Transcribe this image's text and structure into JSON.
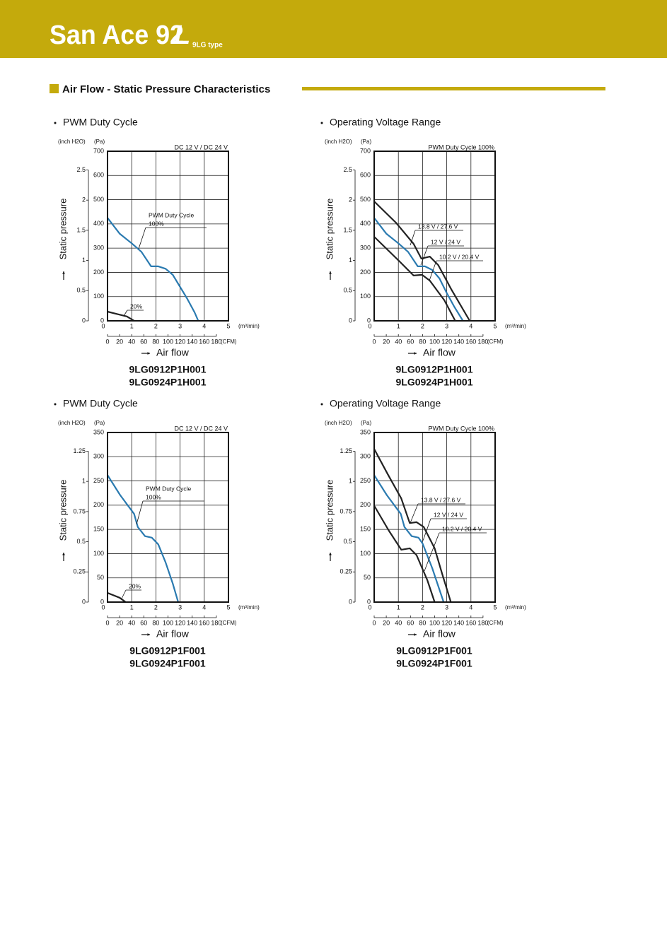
{
  "header": {
    "brand": "San Ace 92",
    "suffix": "L",
    "type": "9LG type"
  },
  "section_title": "Air Flow - Static Pressure Characteristics",
  "chart_data": [
    {
      "type": "line",
      "title": "PWM Duty Cycle",
      "condition": "DC 12 V / DC 24 V",
      "annotation": "PWM Duty Cycle",
      "y_label": "Static pressure",
      "x_label": "Air flow",
      "y_unit": "(Pa)",
      "y2_unit": "(inch H2O)",
      "x_unit": "(m³/min)",
      "x2_unit": "(CFM)",
      "models": [
        "9LG0912P1H001",
        "9LG0924P1H001"
      ],
      "xlim": [
        0,
        5
      ],
      "xticks": [
        0,
        1,
        2,
        3,
        4,
        5
      ],
      "ylim": [
        0,
        700
      ],
      "yticks": [
        0,
        100,
        200,
        300,
        400,
        500,
        600,
        700
      ],
      "y2lim": [
        0,
        2.81
      ],
      "y2ticks": [
        0,
        0.5,
        1.0,
        1.5,
        2.0,
        2.5
      ],
      "x2lim": [
        0,
        200
      ],
      "x2ticks": [
        0,
        20,
        40,
        60,
        80,
        100,
        120,
        140,
        160,
        180
      ],
      "grid": true,
      "series": [
        {
          "name": "100%",
          "color": "#2a7ab0",
          "x": [
            0,
            0.5,
            1,
            1.4,
            1.8,
            2.1,
            2.4,
            2.7,
            3.0,
            3.3,
            3.6,
            3.75
          ],
          "values": [
            425,
            360,
            320,
            285,
            225,
            225,
            215,
            190,
            140,
            90,
            35,
            0
          ]
        },
        {
          "name": "20%",
          "color": "#222222",
          "x": [
            0,
            0.4,
            0.8,
            1.1
          ],
          "values": [
            38,
            28,
            18,
            0
          ]
        }
      ]
    },
    {
      "type": "line",
      "title": "Operating Voltage Range",
      "condition": "PWM Duty Cycle 100%",
      "y_label": "Static pressure",
      "x_label": "Air flow",
      "y_unit": "(Pa)",
      "y2_unit": "(inch H2O)",
      "x_unit": "(m³/min)",
      "x2_unit": "(CFM)",
      "models": [
        "9LG0912P1H001",
        "9LG0924P1H001"
      ],
      "xlim": [
        0,
        5
      ],
      "xticks": [
        0,
        1,
        2,
        3,
        4,
        5
      ],
      "ylim": [
        0,
        700
      ],
      "yticks": [
        0,
        100,
        200,
        300,
        400,
        500,
        600,
        700
      ],
      "y2lim": [
        0,
        2.81
      ],
      "y2ticks": [
        0,
        0.5,
        1.0,
        1.5,
        2.0,
        2.5
      ],
      "x2lim": [
        0,
        200
      ],
      "x2ticks": [
        0,
        20,
        40,
        60,
        80,
        100,
        120,
        140,
        160,
        180
      ],
      "grid": true,
      "series": [
        {
          "name": "13.8 V / 27.6 V",
          "color": "#222222",
          "x": [
            0,
            0.9,
            1.63,
            1.95,
            2.3,
            2.65,
            3.2,
            3.95
          ],
          "values": [
            493,
            405,
            318,
            257,
            265,
            230,
            128,
            0
          ]
        },
        {
          "name": "12 V / 24 V",
          "color": "#2a7ab0",
          "x": [
            0,
            0.5,
            1,
            1.4,
            1.8,
            2.1,
            2.4,
            2.7,
            3.0,
            3.3,
            3.67
          ],
          "values": [
            425,
            360,
            320,
            285,
            225,
            225,
            210,
            175,
            115,
            60,
            0
          ]
        },
        {
          "name": "10.2 V / 20.4 V",
          "color": "#222222",
          "x": [
            0,
            1.05,
            1.63,
            1.98,
            2.3,
            2.9,
            3.35
          ],
          "values": [
            347,
            245,
            187,
            190,
            166,
            85,
            0
          ]
        }
      ]
    },
    {
      "type": "line",
      "title": "PWM Duty Cycle",
      "condition": "DC 12 V / DC 24 V",
      "annotation": "PWM Duty Cycle",
      "y_label": "Static pressure",
      "x_label": "Air flow",
      "y_unit": "(Pa)",
      "y2_unit": "(inch H2O)",
      "x_unit": "(m³/min)",
      "x2_unit": "(CFM)",
      "models": [
        "9LG0912P1F001",
        "9LG0924P1F001"
      ],
      "xlim": [
        0,
        5
      ],
      "xticks": [
        0,
        1,
        2,
        3,
        4,
        5
      ],
      "ylim": [
        0,
        350
      ],
      "yticks": [
        0,
        50,
        100,
        150,
        200,
        250,
        300,
        350
      ],
      "y2lim": [
        0,
        1.405
      ],
      "y2ticks": [
        0,
        0.25,
        0.5,
        0.75,
        1.0,
        1.25
      ],
      "x2lim": [
        0,
        200
      ],
      "x2ticks": [
        0,
        20,
        40,
        60,
        80,
        100,
        120,
        140,
        160,
        180
      ],
      "grid": true,
      "series": [
        {
          "name": "100%",
          "color": "#2a7ab0",
          "x": [
            0,
            0.52,
            1.1,
            1.25,
            1.55,
            1.83,
            2.1,
            2.4,
            2.7,
            2.92
          ],
          "values": [
            262,
            221,
            182,
            155,
            136,
            133,
            119,
            82,
            38,
            0
          ]
        },
        {
          "name": "20%",
          "color": "#222222",
          "x": [
            0,
            0.5,
            0.75
          ],
          "values": [
            19,
            9,
            0
          ]
        }
      ]
    },
    {
      "type": "line",
      "title": "Operating Voltage Range",
      "condition": "PWM Duty Cycle 100%",
      "y_label": "Static pressure",
      "x_label": "Air flow",
      "y_unit": "(Pa)",
      "y2_unit": "(inch H2O)",
      "x_unit": "(m³/min)",
      "x2_unit": "(CFM)",
      "models": [
        "9LG0912P1F001",
        "9LG0924P1F001"
      ],
      "xlim": [
        0,
        5
      ],
      "xticks": [
        0,
        1,
        2,
        3,
        4,
        5
      ],
      "ylim": [
        0,
        350
      ],
      "yticks": [
        0,
        50,
        100,
        150,
        200,
        250,
        300,
        350
      ],
      "y2lim": [
        0,
        1.405
      ],
      "y2ticks": [
        0,
        0.25,
        0.5,
        0.75,
        1.0,
        1.25
      ],
      "x2lim": [
        0,
        200
      ],
      "x2ticks": [
        0,
        20,
        40,
        60,
        80,
        100,
        120,
        140,
        160,
        180
      ],
      "grid": true,
      "series": [
        {
          "name": "13.8 V / 27.6 V",
          "color": "#222222",
          "x": [
            0,
            0.55,
            1.12,
            1.47,
            1.75,
            2.05,
            2.5,
            2.8,
            3.17
          ],
          "values": [
            316,
            265,
            214,
            163,
            165,
            155,
            111,
            60,
            0
          ]
        },
        {
          "name": "12 V / 24 V",
          "color": "#2a7ab0",
          "x": [
            0,
            0.52,
            1.1,
            1.25,
            1.55,
            1.83,
            2.0,
            2.4,
            2.87
          ],
          "values": [
            262,
            221,
            182,
            155,
            136,
            133,
            121,
            70,
            0
          ]
        },
        {
          "name": "10.2 V / 20.4 V",
          "color": "#222222",
          "x": [
            0,
            0.6,
            1.12,
            1.47,
            1.75,
            2.2,
            2.5
          ],
          "values": [
            199,
            148,
            108,
            111,
            97,
            45,
            0
          ]
        }
      ]
    }
  ]
}
